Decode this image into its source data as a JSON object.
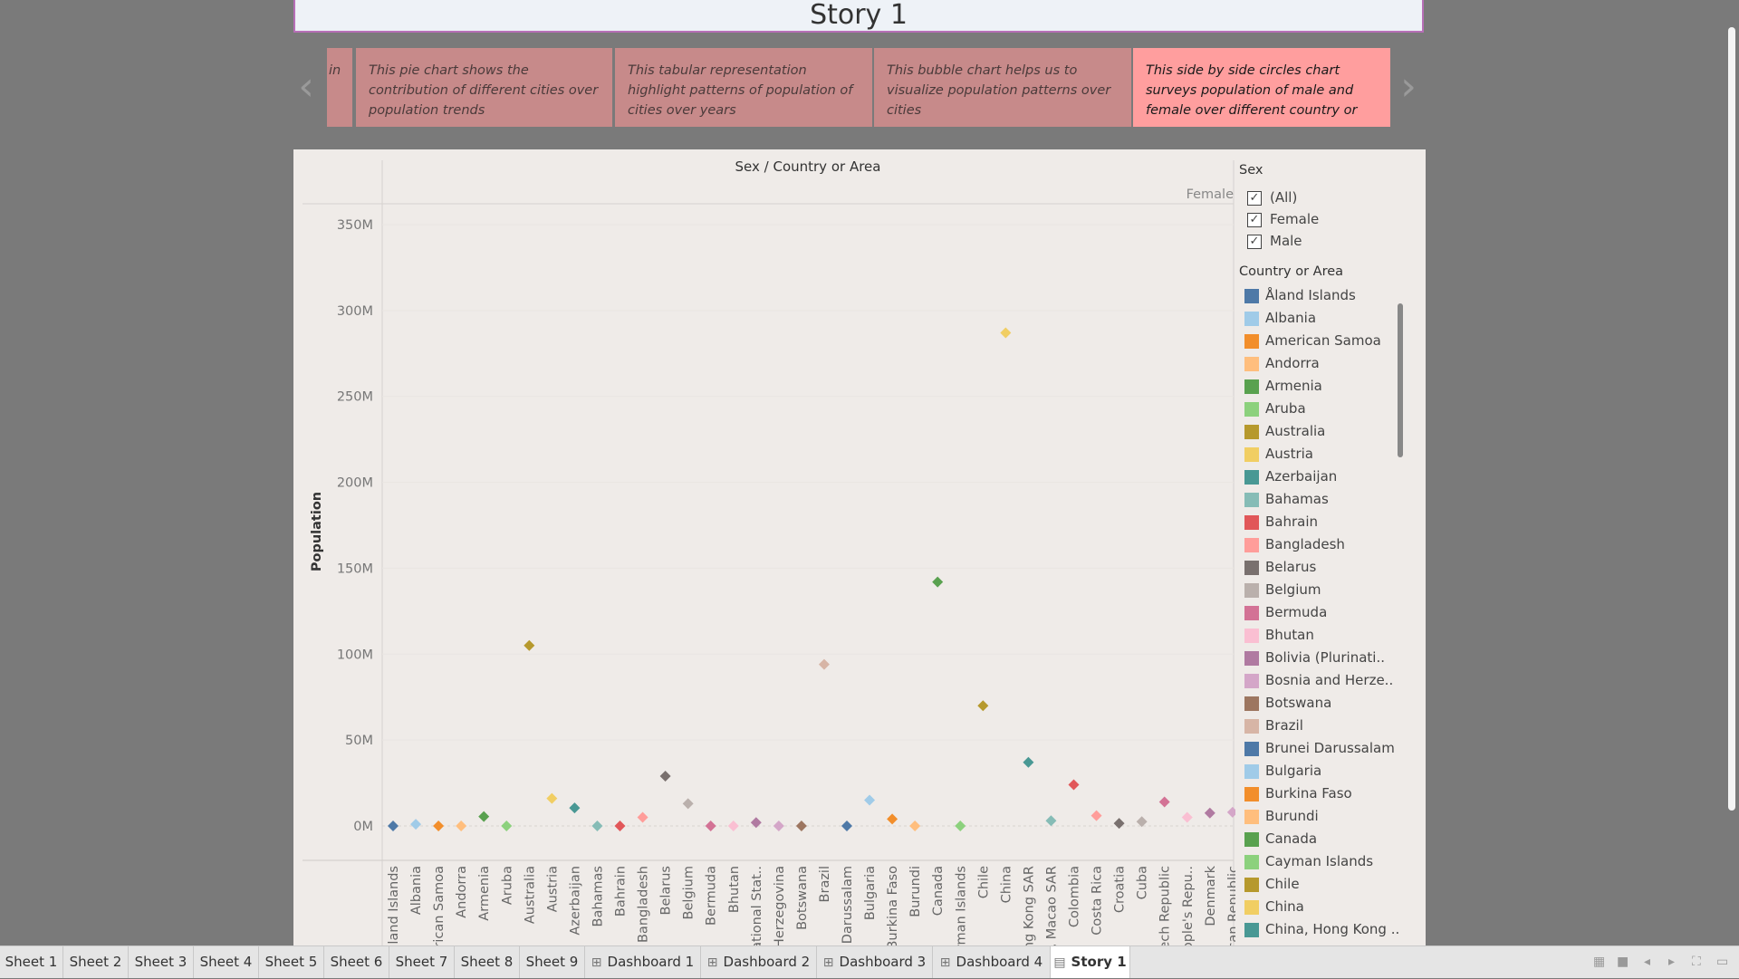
{
  "story": {
    "title": "Story 1",
    "prev_arrow": "‹",
    "next_arrow": "›",
    "points": [
      {
        "text": "in",
        "active": false
      },
      {
        "text": "This pie chart shows the contribution of different cities over population trends",
        "active": false
      },
      {
        "text": "This tabular representation highlight  patterns of population of cities over years",
        "active": false
      },
      {
        "text": "This bubble chart helps us to visualize population patterns over cities",
        "active": false
      },
      {
        "text": "This side by side circles chart surveys population of male and female over different country or",
        "active": true
      }
    ]
  },
  "chart_data": {
    "type": "scatter",
    "title": "Sex / Country or Area",
    "column_header": "Female",
    "ylabel": "Population",
    "ylim": [
      0,
      350000000
    ],
    "yticks": [
      {
        "value": 0,
        "label": "0M"
      },
      {
        "value": 50000000,
        "label": "50M"
      },
      {
        "value": 100000000,
        "label": "100M"
      },
      {
        "value": 150000000,
        "label": "150M"
      },
      {
        "value": 200000000,
        "label": "200M"
      },
      {
        "value": 250000000,
        "label": "250M"
      },
      {
        "value": 300000000,
        "label": "300M"
      },
      {
        "value": 350000000,
        "label": "350M"
      }
    ],
    "marker": "diamond",
    "points": [
      {
        "label": "land Islands",
        "value": 0,
        "color": "#4e79a7"
      },
      {
        "label": "Albania",
        "value": 1000000,
        "color": "#a0cbe8"
      },
      {
        "label": "rican Samoa",
        "value": 0,
        "color": "#f28e2b"
      },
      {
        "label": "Andorra",
        "value": 0,
        "color": "#ffbe7d"
      },
      {
        "label": "Armenia",
        "value": 5500000,
        "color": "#59a14f"
      },
      {
        "label": "Aruba",
        "value": 0,
        "color": "#8cd17d"
      },
      {
        "label": "Australia",
        "value": 105000000,
        "color": "#b6992d"
      },
      {
        "label": "Austria",
        "value": 16000000,
        "color": "#f1ce63"
      },
      {
        "label": "Azerbaijan",
        "value": 10500000,
        "color": "#499894"
      },
      {
        "label": "Bahamas",
        "value": 0,
        "color": "#86bcb6"
      },
      {
        "label": "Bahrain",
        "value": 0,
        "color": "#e15759"
      },
      {
        "label": "Bangladesh",
        "value": 5000000,
        "color": "#ff9d9a"
      },
      {
        "label": "Belarus",
        "value": 29000000,
        "color": "#79706e"
      },
      {
        "label": "Belgium",
        "value": 13000000,
        "color": "#bab0ac"
      },
      {
        "label": "Bermuda",
        "value": 0,
        "color": "#d37295"
      },
      {
        "label": "Bhutan",
        "value": 0,
        "color": "#fabfd2"
      },
      {
        "label": "ational Stat..",
        "value": 2000000,
        "color": "#b07aa1"
      },
      {
        "label": "Herzegovina",
        "value": 0,
        "color": "#d4a6c8"
      },
      {
        "label": "Botswana",
        "value": 0,
        "color": "#9d7660"
      },
      {
        "label": "Brazil",
        "value": 94000000,
        "color": "#d7b5a6"
      },
      {
        "label": "Darussalam",
        "value": 0,
        "color": "#4e79a7"
      },
      {
        "label": "Bulgaria",
        "value": 15000000,
        "color": "#a0cbe8"
      },
      {
        "label": "Burkina Faso",
        "value": 4000000,
        "color": "#f28e2b"
      },
      {
        "label": "Burundi",
        "value": 0,
        "color": "#ffbe7d"
      },
      {
        "label": "Canada",
        "value": 142000000,
        "color": "#59a14f"
      },
      {
        "label": "rman Islands",
        "value": 0,
        "color": "#8cd17d"
      },
      {
        "label": "Chile",
        "value": 70000000,
        "color": "#b6992d"
      },
      {
        "label": "China",
        "value": 287000000,
        "color": "#f1ce63"
      },
      {
        "label": "ng Kong SAR",
        "value": 37000000,
        "color": "#499894"
      },
      {
        "label": ", Macao SAR",
        "value": 3000000,
        "color": "#86bcb6"
      },
      {
        "label": "Colombia",
        "value": 24000000,
        "color": "#e15759"
      },
      {
        "label": "Costa Rica",
        "value": 6000000,
        "color": "#ff9d9a"
      },
      {
        "label": "Croatia",
        "value": 1500000,
        "color": "#79706e"
      },
      {
        "label": "Cuba",
        "value": 2500000,
        "color": "#bab0ac"
      },
      {
        "label": "ech Republic",
        "value": 14000000,
        "color": "#d37295"
      },
      {
        "label": "ople's Repu..",
        "value": 5000000,
        "color": "#fabfd2"
      },
      {
        "label": "Denmark",
        "value": 7500000,
        "color": "#b07aa1"
      },
      {
        "label": "can Republic",
        "value": 8000000,
        "color": "#d4a6c8"
      }
    ]
  },
  "legend": {
    "sex_heading": "Sex",
    "sex_filters": [
      {
        "label": "(All)",
        "checked": true
      },
      {
        "label": "Female",
        "checked": true
      },
      {
        "label": "Male",
        "checked": true
      }
    ],
    "country_heading": "Country or Area",
    "country_items": [
      {
        "label": "Åland Islands",
        "color": "#4e79a7"
      },
      {
        "label": "Albania",
        "color": "#a0cbe8"
      },
      {
        "label": "American Samoa",
        "color": "#f28e2b"
      },
      {
        "label": "Andorra",
        "color": "#ffbe7d"
      },
      {
        "label": "Armenia",
        "color": "#59a14f"
      },
      {
        "label": "Aruba",
        "color": "#8cd17d"
      },
      {
        "label": "Australia",
        "color": "#b6992d"
      },
      {
        "label": "Austria",
        "color": "#f1ce63"
      },
      {
        "label": "Azerbaijan",
        "color": "#499894"
      },
      {
        "label": "Bahamas",
        "color": "#86bcb6"
      },
      {
        "label": "Bahrain",
        "color": "#e15759"
      },
      {
        "label": "Bangladesh",
        "color": "#ff9d9a"
      },
      {
        "label": "Belarus",
        "color": "#79706e"
      },
      {
        "label": "Belgium",
        "color": "#bab0ac"
      },
      {
        "label": "Bermuda",
        "color": "#d37295"
      },
      {
        "label": "Bhutan",
        "color": "#fabfd2"
      },
      {
        "label": "Bolivia (Plurinati..",
        "color": "#b07aa1"
      },
      {
        "label": "Bosnia and Herze..",
        "color": "#d4a6c8"
      },
      {
        "label": "Botswana",
        "color": "#9d7660"
      },
      {
        "label": "Brazil",
        "color": "#d7b5a6"
      },
      {
        "label": "Brunei Darussalam",
        "color": "#4e79a7"
      },
      {
        "label": "Bulgaria",
        "color": "#a0cbe8"
      },
      {
        "label": "Burkina Faso",
        "color": "#f28e2b"
      },
      {
        "label": "Burundi",
        "color": "#ffbe7d"
      },
      {
        "label": "Canada",
        "color": "#59a14f"
      },
      {
        "label": "Cayman Islands",
        "color": "#8cd17d"
      },
      {
        "label": "Chile",
        "color": "#b6992d"
      },
      {
        "label": "China",
        "color": "#f1ce63"
      },
      {
        "label": "China, Hong Kong ..",
        "color": "#499894"
      }
    ]
  },
  "tabs": [
    {
      "label": "Sheet 1",
      "icon": ""
    },
    {
      "label": "Sheet 2",
      "icon": ""
    },
    {
      "label": "Sheet 3",
      "icon": ""
    },
    {
      "label": "Sheet 4",
      "icon": ""
    },
    {
      "label": "Sheet 5",
      "icon": ""
    },
    {
      "label": "Sheet 6",
      "icon": ""
    },
    {
      "label": "Sheet 7",
      "icon": ""
    },
    {
      "label": "Sheet 8",
      "icon": ""
    },
    {
      "label": "Sheet 9",
      "icon": ""
    },
    {
      "label": "Dashboard 1",
      "icon": "dashboard-icon"
    },
    {
      "label": "Dashboard 2",
      "icon": "dashboard-icon"
    },
    {
      "label": "Dashboard 3",
      "icon": "dashboard-icon"
    },
    {
      "label": "Dashboard 4",
      "icon": "dashboard-icon"
    },
    {
      "label": "Story 1",
      "icon": "story-icon",
      "active": true
    }
  ],
  "status_icons": [
    "grid-view-icon",
    "single-view-icon",
    "prev-icon",
    "next-icon",
    "fullscreen-icon",
    "comment-icon"
  ]
}
